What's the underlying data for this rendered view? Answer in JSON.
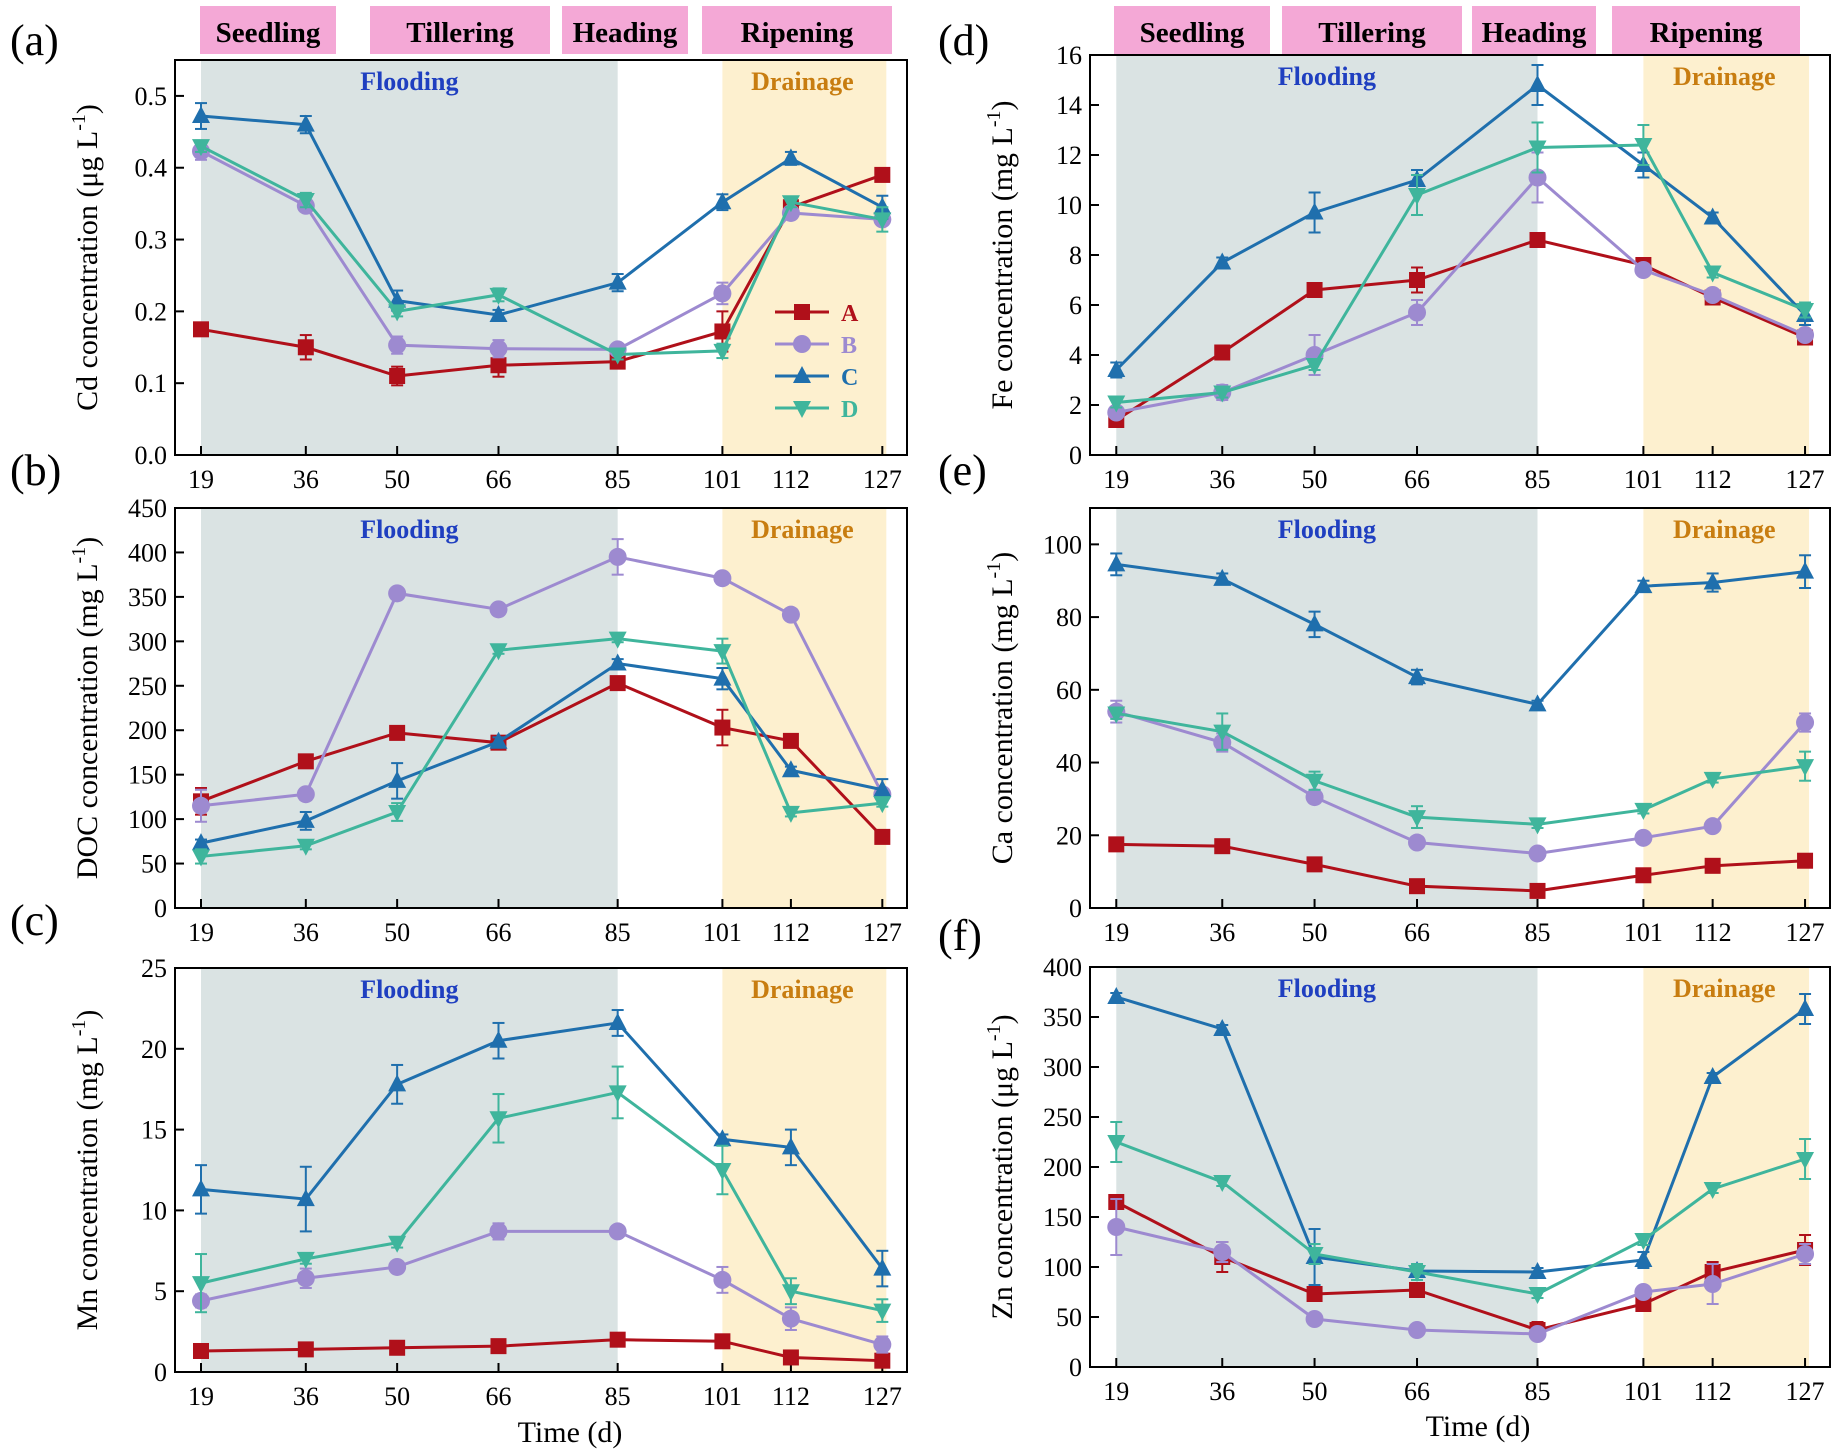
{
  "figure": {
    "time_unit_label": "Time (d)",
    "stages": [
      "Seedling",
      "Tillering",
      "Heading",
      "Ripening"
    ],
    "flooding_label": "Flooding",
    "drainage_label": "Drainage",
    "legend": [
      "A",
      "B",
      "C",
      "D"
    ]
  },
  "colors": {
    "A": "#b0101a",
    "B": "#9d8ad0",
    "C": "#1f6fad",
    "D": "#3fb59c",
    "flooding_bg": "#dae3e3",
    "drainage_bg": "#fdf0cf",
    "stage_bg": "#f4a8d6",
    "flooding_text": "#1f3fc0",
    "drainage_text": "#c87d10"
  },
  "chart_data": [
    {
      "panel": "(a)",
      "type": "line",
      "ylabel": "Cd concentration (μg L-1)",
      "ylim": [
        0,
        0.55
      ],
      "yticks": [
        0.0,
        0.1,
        0.2,
        0.3,
        0.4,
        0.5
      ],
      "x": [
        19,
        36,
        50,
        66,
        85,
        101,
        112,
        127
      ],
      "flooding_x": [
        19,
        85
      ],
      "drainage_x": [
        101,
        127
      ],
      "legend": true,
      "series": [
        {
          "name": "A",
          "values": [
            0.175,
            0.15,
            0.11,
            0.125,
            0.13,
            0.172,
            0.345,
            0.39
          ],
          "err": [
            0.005,
            0.017,
            0.013,
            0.016,
            0.008,
            0.028,
            0.013,
            0.005
          ]
        },
        {
          "name": "B",
          "values": [
            0.423,
            0.347,
            0.153,
            0.148,
            0.147,
            0.225,
            0.337,
            0.328
          ],
          "err": [
            0.012,
            0.008,
            0.012,
            0.012,
            0.005,
            0.015,
            0.007,
            0.008
          ]
        },
        {
          "name": "C",
          "values": [
            0.472,
            0.46,
            0.215,
            0.195,
            0.24,
            0.352,
            0.413,
            0.345
          ],
          "err": [
            0.018,
            0.012,
            0.014,
            0.007,
            0.012,
            0.011,
            0.009,
            0.016
          ]
        },
        {
          "name": "D",
          "values": [
            0.43,
            0.355,
            0.2,
            0.223,
            0.14,
            0.145,
            0.352,
            0.328
          ],
          "err": [
            0.008,
            0.01,
            0.007,
            0.009,
            0.007,
            0.01,
            0.007,
            0.017
          ]
        }
      ]
    },
    {
      "panel": "(b)",
      "type": "line",
      "ylabel": "DOC concentration (mg L-1)",
      "ylim": [
        0,
        450
      ],
      "yticks": [
        0,
        50,
        100,
        150,
        200,
        250,
        300,
        350,
        400,
        450
      ],
      "x": [
        19,
        36,
        50,
        66,
        85,
        101,
        112,
        127
      ],
      "flooding_x": [
        19,
        85
      ],
      "drainage_x": [
        101,
        127
      ],
      "legend": false,
      "series": [
        {
          "name": "A",
          "values": [
            120,
            165,
            197,
            186,
            253,
            203,
            188,
            80
          ],
          "err": [
            15,
            5,
            4,
            6,
            6,
            20,
            4,
            4
          ]
        },
        {
          "name": "B",
          "values": [
            115,
            128,
            354,
            336,
            395,
            371,
            330,
            128
          ],
          "err": [
            18,
            4,
            4,
            4,
            20,
            4,
            4,
            6
          ]
        },
        {
          "name": "C",
          "values": [
            73,
            98,
            143,
            187,
            275,
            258,
            155,
            133
          ],
          "err": [
            4,
            10,
            20,
            5,
            5,
            12,
            4,
            12
          ]
        },
        {
          "name": "D",
          "values": [
            58,
            70,
            108,
            290,
            303,
            289,
            107,
            118
          ],
          "err": [
            8,
            4,
            10,
            4,
            4,
            14,
            4,
            4
          ]
        }
      ]
    },
    {
      "panel": "(c)",
      "type": "line",
      "ylabel": "Mn concentration (mg L-1)",
      "ylim": [
        0,
        25
      ],
      "yticks": [
        0,
        5,
        10,
        15,
        20,
        25
      ],
      "x": [
        19,
        36,
        50,
        66,
        85,
        101,
        112,
        127
      ],
      "flooding_x": [
        19,
        85
      ],
      "drainage_x": [
        101,
        127
      ],
      "legend": false,
      "series": [
        {
          "name": "A",
          "values": [
            1.3,
            1.4,
            1.5,
            1.6,
            2.0,
            1.9,
            0.9,
            0.7
          ],
          "err": [
            0.2,
            0.2,
            0.2,
            0.2,
            0.2,
            0.2,
            0.2,
            0.2
          ]
        },
        {
          "name": "B",
          "values": [
            4.4,
            5.8,
            6.5,
            8.7,
            8.7,
            5.7,
            3.3,
            1.7
          ],
          "err": [
            0.4,
            0.6,
            0.3,
            0.5,
            0.3,
            0.8,
            0.7,
            0.5
          ]
        },
        {
          "name": "C",
          "values": [
            11.3,
            10.7,
            17.8,
            20.5,
            21.6,
            14.4,
            13.9,
            6.4
          ],
          "err": [
            1.5,
            2.0,
            1.2,
            1.1,
            0.8,
            0.3,
            1.1,
            1.1
          ]
        },
        {
          "name": "D",
          "values": [
            5.5,
            7.0,
            8.0,
            15.7,
            17.3,
            12.5,
            5.0,
            3.8
          ],
          "err": [
            1.8,
            0.3,
            0.3,
            1.5,
            1.6,
            1.5,
            0.8,
            0.7
          ]
        }
      ]
    },
    {
      "panel": "(d)",
      "type": "line",
      "ylabel": "Fe concentration (mg L-1)",
      "ylim": [
        0,
        16
      ],
      "yticks": [
        0,
        2,
        4,
        6,
        8,
        10,
        12,
        14,
        16
      ],
      "x": [
        19,
        36,
        50,
        66,
        85,
        101,
        112,
        127
      ],
      "flooding_x": [
        19,
        85
      ],
      "drainage_x": [
        101,
        127
      ],
      "legend": false,
      "series": [
        {
          "name": "A",
          "values": [
            1.4,
            4.1,
            6.6,
            7.0,
            8.6,
            7.6,
            6.3,
            4.7
          ],
          "err": [
            0.2,
            0.2,
            0.2,
            0.5,
            0.2,
            0.2,
            0.2,
            0.2
          ]
        },
        {
          "name": "B",
          "values": [
            1.7,
            2.5,
            4.0,
            5.7,
            11.1,
            7.4,
            6.4,
            4.8
          ],
          "err": [
            0.2,
            0.3,
            0.8,
            0.5,
            1.0,
            0.2,
            0.2,
            0.2
          ]
        },
        {
          "name": "C",
          "values": [
            3.4,
            7.7,
            9.7,
            11.0,
            14.8,
            11.6,
            9.5,
            5.6
          ],
          "err": [
            0.3,
            0.2,
            0.8,
            0.4,
            0.8,
            0.5,
            0.2,
            0.4
          ]
        },
        {
          "name": "D",
          "values": [
            2.1,
            2.5,
            3.6,
            10.4,
            12.3,
            12.4,
            7.3,
            5.8
          ],
          "err": [
            0.2,
            0.2,
            0.2,
            0.8,
            1.0,
            0.8,
            0.2,
            0.3
          ]
        }
      ]
    },
    {
      "panel": "(e)",
      "type": "line",
      "ylabel": "Ca concentration (mg L-1)",
      "ylim": [
        0,
        110
      ],
      "yticks": [
        0,
        20,
        40,
        60,
        80,
        100
      ],
      "x": [
        19,
        36,
        50,
        66,
        85,
        101,
        112,
        127
      ],
      "flooding_x": [
        19,
        85
      ],
      "drainage_x": [
        101,
        127
      ],
      "legend": false,
      "series": [
        {
          "name": "A",
          "values": [
            17.5,
            17.0,
            12.0,
            6.0,
            4.7,
            9.0,
            11.6,
            13.0
          ],
          "err": [
            0.8,
            0.8,
            0.8,
            0.8,
            0.8,
            0.8,
            0.8,
            1.0
          ]
        },
        {
          "name": "B",
          "values": [
            54.0,
            45.5,
            30.5,
            18.0,
            15.0,
            19.3,
            22.5,
            51.0
          ],
          "err": [
            3.0,
            2.5,
            1.5,
            1.0,
            0.8,
            1.0,
            1.0,
            2.5
          ]
        },
        {
          "name": "C",
          "values": [
            94.5,
            90.5,
            78.0,
            63.5,
            56.0,
            88.5,
            89.5,
            92.5
          ],
          "err": [
            3.0,
            1.5,
            3.5,
            2.0,
            1.0,
            1.5,
            2.5,
            4.5
          ]
        },
        {
          "name": "D",
          "values": [
            53.5,
            48.5,
            35.0,
            25.0,
            23.0,
            27.0,
            35.5,
            39.0
          ],
          "err": [
            1.5,
            5.0,
            2.5,
            3.0,
            1.0,
            1.0,
            1.0,
            4.0
          ]
        }
      ]
    },
    {
      "panel": "(f)",
      "type": "line",
      "ylabel": "Zn concentration (μg L-1)",
      "ylim": [
        0,
        400
      ],
      "yticks": [
        0,
        50,
        100,
        150,
        200,
        250,
        300,
        350,
        400
      ],
      "x": [
        19,
        36,
        50,
        66,
        85,
        101,
        112,
        127
      ],
      "flooding_x": [
        19,
        85
      ],
      "drainage_x": [
        101,
        127
      ],
      "legend": false,
      "series": [
        {
          "name": "A",
          "values": [
            165,
            110,
            73,
            77,
            37,
            63,
            95,
            117
          ],
          "err": [
            5,
            15,
            5,
            5,
            8,
            5,
            10,
            15
          ]
        },
        {
          "name": "B",
          "values": [
            140,
            115,
            48,
            37,
            33,
            75,
            83,
            113
          ],
          "err": [
            28,
            10,
            4,
            3,
            3,
            3,
            20,
            10
          ]
        },
        {
          "name": "C",
          "values": [
            370,
            338,
            110,
            96,
            95,
            107,
            290,
            358
          ],
          "err": [
            4,
            4,
            28,
            5,
            4,
            8,
            4,
            15
          ]
        },
        {
          "name": "D",
          "values": [
            225,
            185,
            113,
            95,
            73,
            127,
            178,
            208
          ],
          "err": [
            20,
            4,
            10,
            8,
            4,
            5,
            4,
            20
          ]
        }
      ]
    }
  ]
}
